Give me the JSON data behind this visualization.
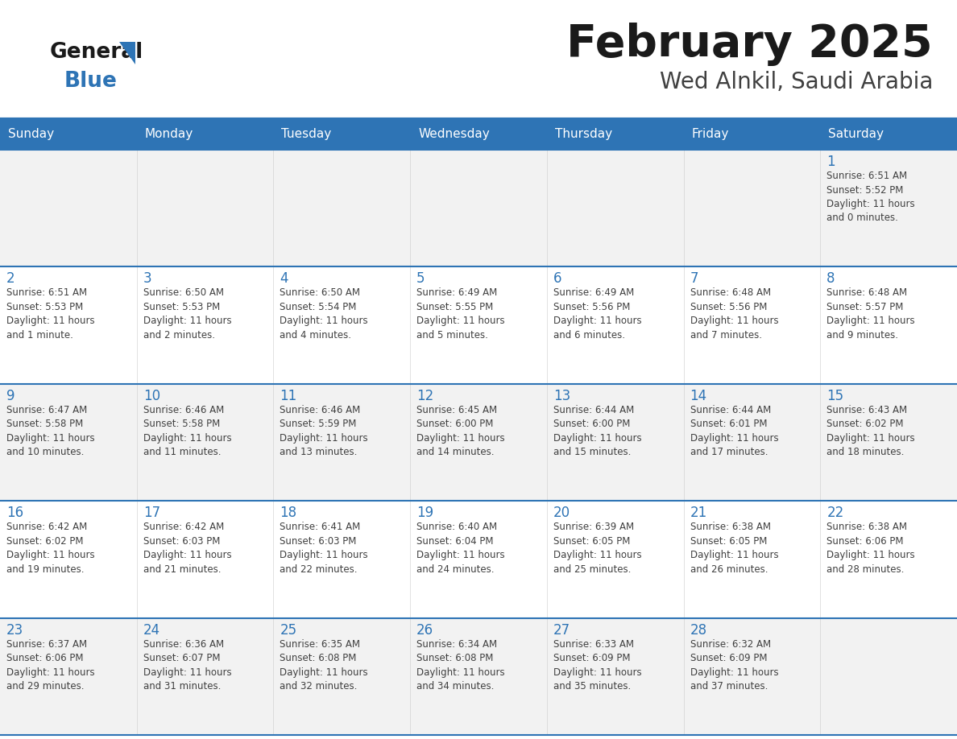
{
  "title": "February 2025",
  "subtitle": "Wed Alnkil, Saudi Arabia",
  "days_of_week": [
    "Sunday",
    "Monday",
    "Tuesday",
    "Wednesday",
    "Thursday",
    "Friday",
    "Saturday"
  ],
  "header_bg": "#2E74B5",
  "header_text": "#FFFFFF",
  "row_bg_odd": "#F2F2F2",
  "row_bg_even": "#FFFFFF",
  "separator_color": "#2E74B5",
  "day_number_color": "#2E74B5",
  "cell_text_color": "#404040",
  "title_color": "#1a1a1a",
  "subtitle_color": "#404040",
  "logo_general_color": "#1a1a1a",
  "logo_blue_color": "#2E74B5",
  "logo_triangle_color": "#2E74B5",
  "weeks": [
    {
      "days": [
        {
          "date": null,
          "info": null
        },
        {
          "date": null,
          "info": null
        },
        {
          "date": null,
          "info": null
        },
        {
          "date": null,
          "info": null
        },
        {
          "date": null,
          "info": null
        },
        {
          "date": null,
          "info": null
        },
        {
          "date": 1,
          "info": "Sunrise: 6:51 AM\nSunset: 5:52 PM\nDaylight: 11 hours\nand 0 minutes."
        }
      ]
    },
    {
      "days": [
        {
          "date": 2,
          "info": "Sunrise: 6:51 AM\nSunset: 5:53 PM\nDaylight: 11 hours\nand 1 minute."
        },
        {
          "date": 3,
          "info": "Sunrise: 6:50 AM\nSunset: 5:53 PM\nDaylight: 11 hours\nand 2 minutes."
        },
        {
          "date": 4,
          "info": "Sunrise: 6:50 AM\nSunset: 5:54 PM\nDaylight: 11 hours\nand 4 minutes."
        },
        {
          "date": 5,
          "info": "Sunrise: 6:49 AM\nSunset: 5:55 PM\nDaylight: 11 hours\nand 5 minutes."
        },
        {
          "date": 6,
          "info": "Sunrise: 6:49 AM\nSunset: 5:56 PM\nDaylight: 11 hours\nand 6 minutes."
        },
        {
          "date": 7,
          "info": "Sunrise: 6:48 AM\nSunset: 5:56 PM\nDaylight: 11 hours\nand 7 minutes."
        },
        {
          "date": 8,
          "info": "Sunrise: 6:48 AM\nSunset: 5:57 PM\nDaylight: 11 hours\nand 9 minutes."
        }
      ]
    },
    {
      "days": [
        {
          "date": 9,
          "info": "Sunrise: 6:47 AM\nSunset: 5:58 PM\nDaylight: 11 hours\nand 10 minutes."
        },
        {
          "date": 10,
          "info": "Sunrise: 6:46 AM\nSunset: 5:58 PM\nDaylight: 11 hours\nand 11 minutes."
        },
        {
          "date": 11,
          "info": "Sunrise: 6:46 AM\nSunset: 5:59 PM\nDaylight: 11 hours\nand 13 minutes."
        },
        {
          "date": 12,
          "info": "Sunrise: 6:45 AM\nSunset: 6:00 PM\nDaylight: 11 hours\nand 14 minutes."
        },
        {
          "date": 13,
          "info": "Sunrise: 6:44 AM\nSunset: 6:00 PM\nDaylight: 11 hours\nand 15 minutes."
        },
        {
          "date": 14,
          "info": "Sunrise: 6:44 AM\nSunset: 6:01 PM\nDaylight: 11 hours\nand 17 minutes."
        },
        {
          "date": 15,
          "info": "Sunrise: 6:43 AM\nSunset: 6:02 PM\nDaylight: 11 hours\nand 18 minutes."
        }
      ]
    },
    {
      "days": [
        {
          "date": 16,
          "info": "Sunrise: 6:42 AM\nSunset: 6:02 PM\nDaylight: 11 hours\nand 19 minutes."
        },
        {
          "date": 17,
          "info": "Sunrise: 6:42 AM\nSunset: 6:03 PM\nDaylight: 11 hours\nand 21 minutes."
        },
        {
          "date": 18,
          "info": "Sunrise: 6:41 AM\nSunset: 6:03 PM\nDaylight: 11 hours\nand 22 minutes."
        },
        {
          "date": 19,
          "info": "Sunrise: 6:40 AM\nSunset: 6:04 PM\nDaylight: 11 hours\nand 24 minutes."
        },
        {
          "date": 20,
          "info": "Sunrise: 6:39 AM\nSunset: 6:05 PM\nDaylight: 11 hours\nand 25 minutes."
        },
        {
          "date": 21,
          "info": "Sunrise: 6:38 AM\nSunset: 6:05 PM\nDaylight: 11 hours\nand 26 minutes."
        },
        {
          "date": 22,
          "info": "Sunrise: 6:38 AM\nSunset: 6:06 PM\nDaylight: 11 hours\nand 28 minutes."
        }
      ]
    },
    {
      "days": [
        {
          "date": 23,
          "info": "Sunrise: 6:37 AM\nSunset: 6:06 PM\nDaylight: 11 hours\nand 29 minutes."
        },
        {
          "date": 24,
          "info": "Sunrise: 6:36 AM\nSunset: 6:07 PM\nDaylight: 11 hours\nand 31 minutes."
        },
        {
          "date": 25,
          "info": "Sunrise: 6:35 AM\nSunset: 6:08 PM\nDaylight: 11 hours\nand 32 minutes."
        },
        {
          "date": 26,
          "info": "Sunrise: 6:34 AM\nSunset: 6:08 PM\nDaylight: 11 hours\nand 34 minutes."
        },
        {
          "date": 27,
          "info": "Sunrise: 6:33 AM\nSunset: 6:09 PM\nDaylight: 11 hours\nand 35 minutes."
        },
        {
          "date": 28,
          "info": "Sunrise: 6:32 AM\nSunset: 6:09 PM\nDaylight: 11 hours\nand 37 minutes."
        },
        {
          "date": null,
          "info": null
        }
      ]
    }
  ]
}
